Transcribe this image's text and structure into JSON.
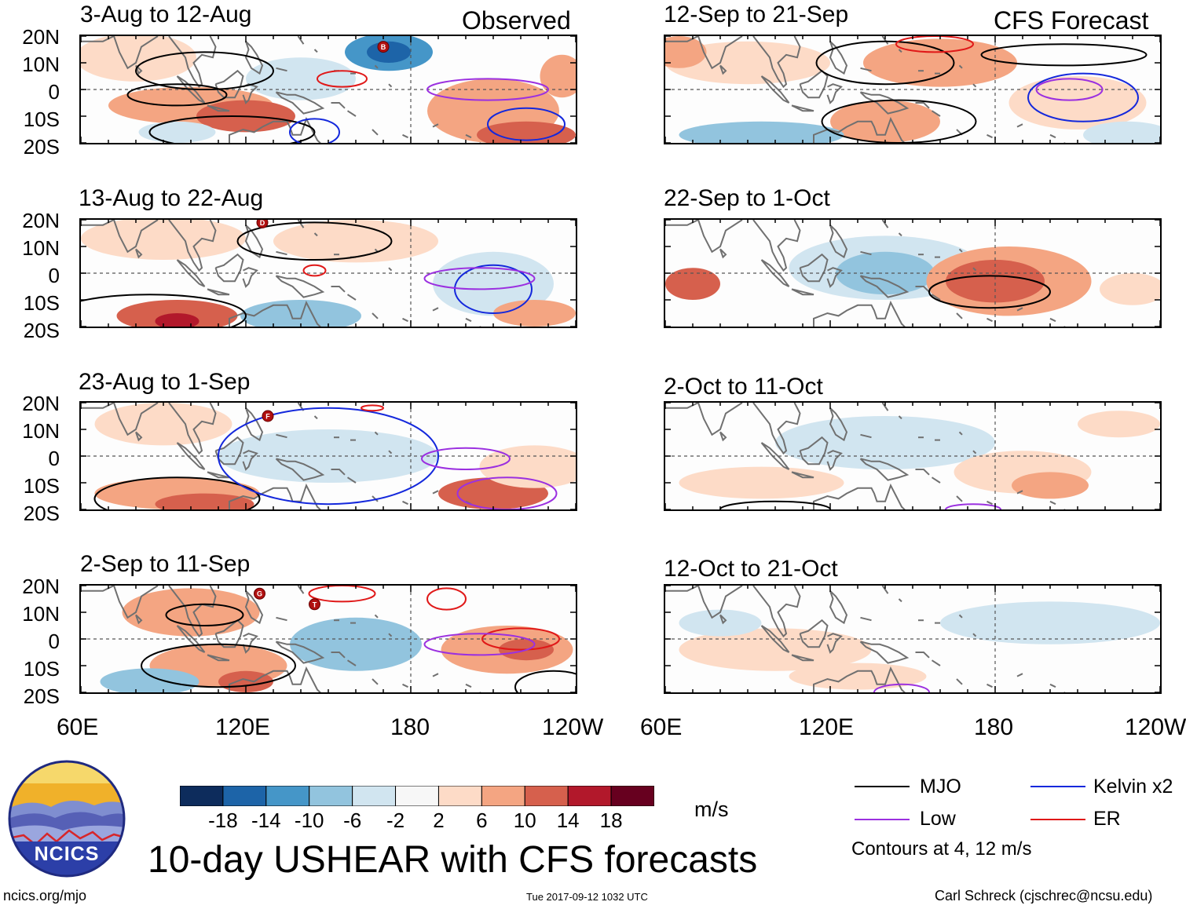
{
  "colors": {
    "mjo": "#000000",
    "low": "#9b30e0",
    "kelvin": "#1428dc",
    "er": "#e01818",
    "coast": "#707070",
    "bins": [
      "#0d2c5c",
      "#1d64a8",
      "#4596c8",
      "#92c4de",
      "#d1e5f0",
      "#f7f7f7",
      "#fddbc7",
      "#f4a582",
      "#d6604d",
      "#b2182b",
      "#67001f"
    ]
  },
  "headers": {
    "observed": "Observed",
    "forecast": "CFS Forecast"
  },
  "panels": [
    {
      "period": "3-Aug to 12-Aug"
    },
    {
      "period": "12-Sep to 21-Sep"
    },
    {
      "period": "13-Aug to 22-Aug"
    },
    {
      "period": "22-Sep to 1-Oct"
    },
    {
      "period": "23-Aug to 1-Sep"
    },
    {
      "period": "2-Oct to 11-Oct"
    },
    {
      "period": "2-Sep to 11-Sep"
    },
    {
      "period": "12-Oct to 21-Oct"
    }
  ],
  "lat_labels": [
    "20N",
    "10N",
    "0",
    "10S",
    "20S"
  ],
  "lon_labels": [
    "60E",
    "120E",
    "180",
    "120W"
  ],
  "colorbar": {
    "ticks": [
      "-18",
      "-14",
      "-10",
      "-6",
      "-2",
      "2",
      "6",
      "10",
      "14",
      "18"
    ],
    "units": "m/s"
  },
  "legend": {
    "mjo": "MJO",
    "kelvin": "Kelvin x2",
    "low": "Low",
    "er": "ER",
    "note": "Contours at 4, 12 m/s"
  },
  "logo": {
    "text": "NCICS"
  },
  "title": "10-day USHEAR with CFS forecasts",
  "footer": {
    "url": "ncics.org/mjo",
    "timestamp": "Tue 2017-09-12 1032 UTC",
    "author": "Carl Schreck (cjschrec@ncsu.edu)"
  },
  "storm_markers": [
    {
      "panel": 0,
      "letter": "B",
      "lon": 170,
      "lat": 16
    },
    {
      "panel": 2,
      "letter": "D",
      "lon": 126,
      "lat": 19
    },
    {
      "panel": 4,
      "letter": "F",
      "lon": 128,
      "lat": 15
    },
    {
      "panel": 6,
      "letter": "G",
      "lon": 125,
      "lat": 17
    },
    {
      "panel": 6,
      "letter": "T",
      "lon": 145,
      "lat": 13
    }
  ]
}
